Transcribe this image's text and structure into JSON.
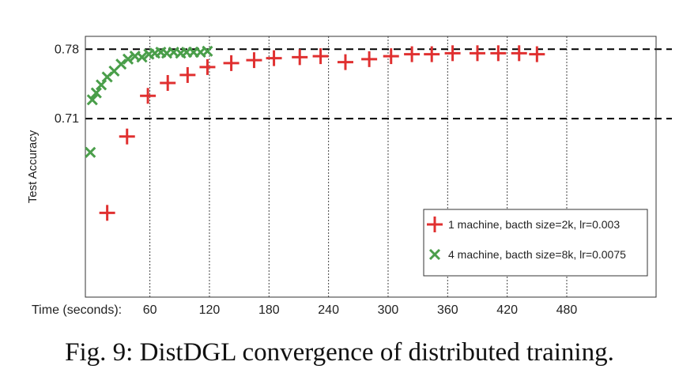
{
  "caption": "Fig. 9: DistDGL convergence of distributed training.",
  "chart_data": {
    "type": "scatter",
    "ylabel": "Test Accuracy",
    "xlabel_prefix": "Time (seconds):",
    "xlim": [
      -5,
      570
    ],
    "ylim": [
      0.53,
      0.793
    ],
    "x_ticks": [
      60,
      120,
      180,
      240,
      300,
      360,
      420,
      480
    ],
    "y_ticks": [
      0.71,
      0.78
    ],
    "reference_lines": [
      0.71,
      0.78
    ],
    "grid": "vertical dotted at x ticks",
    "legend_position": "lower-right",
    "series": [
      {
        "name": "1 machine, bacth size=2k, lr=0.003",
        "marker": "plus",
        "color": "#e03030",
        "x": [
          17,
          37,
          58,
          78,
          98,
          118,
          142,
          165,
          185,
          211,
          232,
          257,
          281,
          303,
          324,
          344,
          365,
          390,
          411,
          432,
          450
        ],
        "y": [
          0.615,
          0.692,
          0.733,
          0.746,
          0.754,
          0.762,
          0.766,
          0.769,
          0.771,
          0.772,
          0.773,
          0.767,
          0.77,
          0.773,
          0.775,
          0.775,
          0.776,
          0.776,
          0.776,
          0.776,
          0.775
        ]
      },
      {
        "name": "4 machine, bacth size=8k, lr=0.0075",
        "marker": "x",
        "color": "#4a9e4a",
        "x": [
          0,
          2,
          6,
          11,
          17,
          24,
          31,
          38,
          45,
          52,
          59,
          65,
          71,
          77,
          84,
          91,
          97,
          104,
          111,
          118
        ],
        "y": [
          0.676,
          0.729,
          0.736,
          0.744,
          0.752,
          0.758,
          0.765,
          0.77,
          0.773,
          0.772,
          0.775,
          0.776,
          0.777,
          0.776,
          0.777,
          0.776,
          0.777,
          0.777,
          0.777,
          0.778
        ]
      }
    ]
  }
}
